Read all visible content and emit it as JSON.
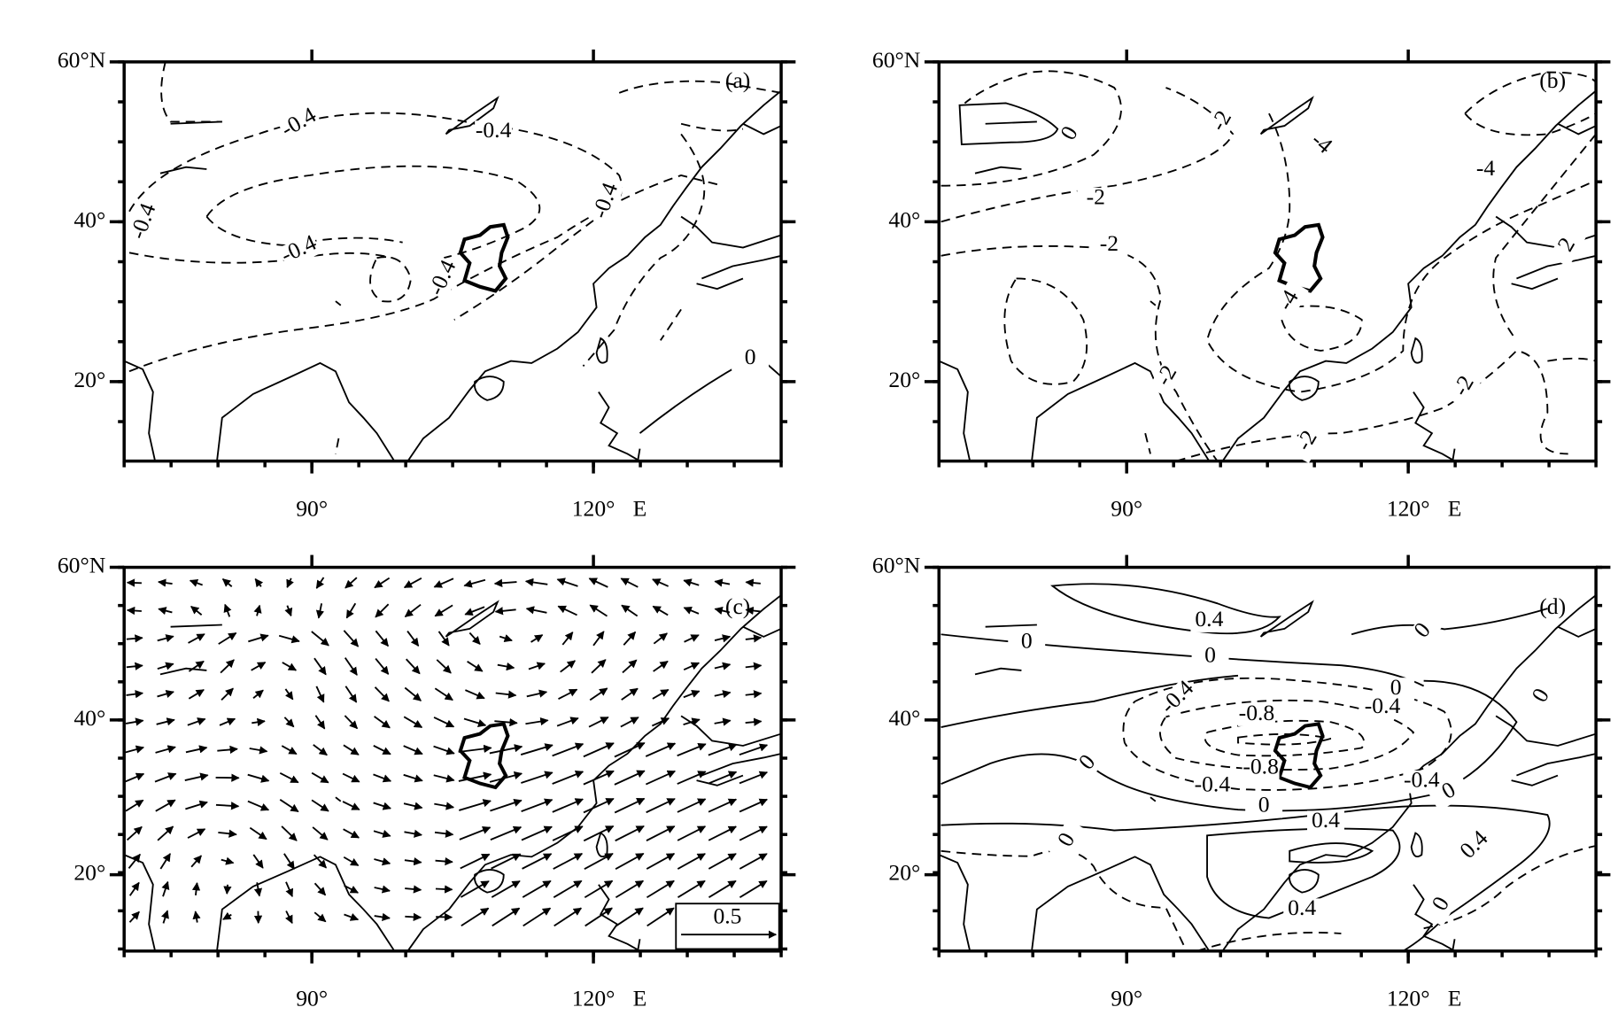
{
  "axes": {
    "lat_labels": [
      "60°N",
      "40°",
      "20°"
    ],
    "lon_labels": [
      "90°",
      "120°"
    ],
    "lon_unit": "E"
  },
  "panels": [
    {
      "label": "(a)",
      "contour_labels": [
        "-0.4",
        "-0.4",
        "-0.4",
        "-0.4",
        "-0.4",
        "-0.4",
        "0"
      ]
    },
    {
      "label": "(b)",
      "contour_labels": [
        "0",
        "-2",
        "-4",
        "-4",
        "-2",
        "-2",
        "-4",
        "2",
        "-2",
        "-2",
        "-2"
      ]
    },
    {
      "label": "(c)",
      "contour_labels": []
    },
    {
      "label": "(d)",
      "contour_labels": [
        "0.4",
        "0",
        "0",
        "0",
        "0",
        "-0.4",
        "-0.4",
        "-0.8",
        "-0.8",
        "0",
        "0",
        "-0.4",
        "-0.4",
        "0",
        "0",
        "0.4",
        "0",
        "0.4",
        "0.4",
        "0"
      ]
    }
  ],
  "vector_reference": "0.5"
}
